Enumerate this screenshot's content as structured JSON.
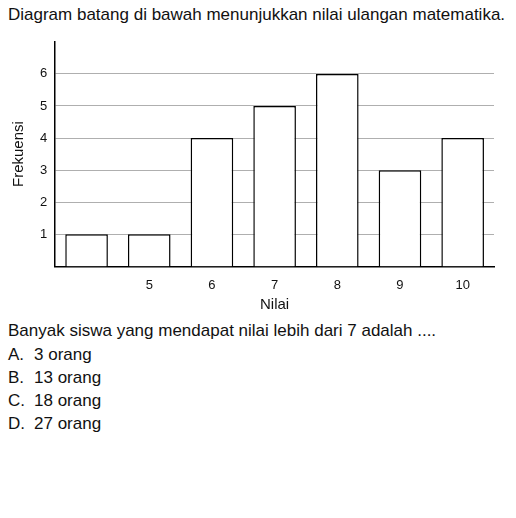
{
  "header": {
    "text": "Diagram batang di bawah menunjukkan nilai ulangan matematika."
  },
  "chart_data": {
    "type": "bar",
    "x_label": "Nilai",
    "y_label": "Frekuensi",
    "categories": [
      null,
      5,
      6,
      7,
      8,
      9,
      10
    ],
    "values": [
      1,
      1,
      4,
      5,
      6,
      3,
      4
    ],
    "color": "#ffffff",
    "ylim": [
      0,
      7
    ],
    "yticks": [
      1,
      2,
      3,
      4,
      5,
      6
    ],
    "grid": true
  },
  "question": {
    "text": "Banyak siswa yang mendapat nilai lebih dari 7 adalah ....",
    "options": [
      {
        "letter": "A.",
        "text": "3 orang"
      },
      {
        "letter": "B.",
        "text": "13 orang"
      },
      {
        "letter": "C.",
        "text": "18 orang"
      },
      {
        "letter": "D.",
        "text": "27 orang"
      }
    ]
  }
}
